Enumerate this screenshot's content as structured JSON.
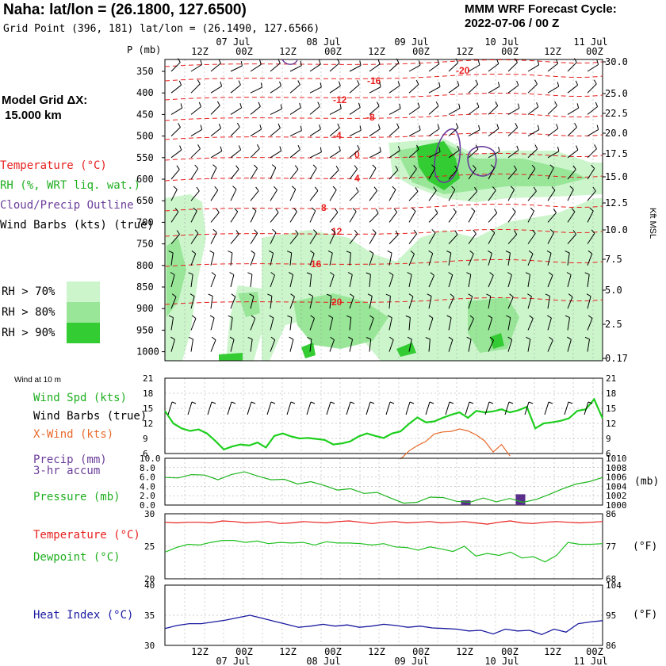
{
  "header": {
    "title": "Naha:  lat/lon = (26.1800, 127.6500)",
    "grid_point": "Grid Point (396, 181) lat/lon = (26.1490, 127.6566)",
    "forecast_label": "MMM WRF Forecast Cycle:",
    "forecast_cycle": "2022-07-06 / 00  Z",
    "model_grid_label": "Model Grid ΔX:",
    "model_grid_value": "15.000 km"
  },
  "time_axis": {
    "hours": [
      "12Z",
      "00Z",
      "12Z",
      "00Z",
      "12Z",
      "00Z",
      "12Z",
      "00Z",
      "12Z",
      "00Z"
    ],
    "dates": [
      "07 Jul",
      "08 Jul",
      "09 Jul",
      "10 Jul",
      "11 Jul"
    ]
  },
  "legend": {
    "temperature": "Temperature (°C)",
    "rh": "RH (%, WRT liq. wat.)",
    "cloud": "Cloud/Precip Outline",
    "barbs": "Wind Barbs (kts) (true)",
    "rh70": "RH > 70%",
    "rh80": "RH > 80%",
    "rh90": "RH > 90%",
    "colors": {
      "rh70": "#ccf5cc",
      "rh80": "#99e699",
      "rh90": "#33cc33",
      "temp": "#e8201e",
      "cloud": "#6a3d9a",
      "wind": "#1ecf1e",
      "xwind": "#e86a2a",
      "pres": "#20b420",
      "precip": "#5a2d8a",
      "heat": "#1a1aa0",
      "dew": "#20c020"
    }
  },
  "chart_data": [
    {
      "type": "heatmap",
      "title": "Time-height cross section",
      "ylabel": "P (mb)",
      "right_label": "Kft MSL",
      "p_ticks": [
        "350",
        "400",
        "450",
        "500",
        "550",
        "600",
        "650",
        "700",
        "750",
        "800",
        "850",
        "900",
        "950",
        "1000"
      ],
      "p_label": "P (mb)",
      "kft_ticks": [
        "30.0",
        "25.0",
        "22.5",
        "20.0",
        "17.5",
        "15.0",
        "12.5",
        "10.0",
        "7.5",
        "5.0",
        "2.5",
        "0.17"
      ],
      "temperature_contour_labels": [
        "-20",
        "-16",
        "-12",
        "-8",
        "-4",
        "0",
        "4",
        "8",
        "12",
        "16",
        "20"
      ],
      "temperature_contour_unit": "°C"
    },
    {
      "type": "line",
      "title": "Wind at 10 m",
      "series": [
        {
          "name": "Wind Spd (kts)",
          "values": [
            14.5,
            12,
            11,
            10.5,
            10.8,
            10,
            8.5,
            6.8,
            7.4,
            7.8,
            7.6,
            8.2,
            7.2,
            9.5,
            10,
            9.4,
            9,
            9.1,
            8.9,
            8.7,
            7.8,
            8,
            8.4,
            9.4,
            10,
            9.5,
            9.1,
            10,
            10.4,
            11.9,
            13.2,
            12.2,
            12.4,
            13.1,
            13.7,
            14.2,
            13.1,
            14.5,
            14.2,
            14.4,
            14.8,
            14.2,
            14.6,
            15.3,
            11,
            12,
            12.2,
            12.5,
            13,
            14.5,
            14.8,
            16.8,
            13
          ]
        },
        {
          "name": "X-Wind (kts)",
          "values": [
            null,
            null,
            null,
            null,
            null,
            null,
            null,
            null,
            null,
            null,
            null,
            null,
            null,
            null,
            null,
            null,
            null,
            null,
            null,
            null,
            null,
            null,
            null,
            null,
            null,
            null,
            null,
            null,
            4.9,
            6.5,
            7.6,
            8.4,
            9.9,
            10.3,
            10.4,
            10.9,
            10.5,
            9.7,
            8.5,
            6.3,
            7.8,
            5.5,
            null,
            null,
            null,
            null,
            null,
            null,
            null,
            null,
            null,
            null,
            null
          ]
        }
      ],
      "ylim": [
        6,
        21
      ],
      "yticks": [
        "21",
        "18",
        "15",
        "12",
        "9",
        "6"
      ],
      "labels": {
        "title": "Wind at 10 m",
        "spd": "Wind Spd (kts)",
        "barbs": "Wind Barbs (true)",
        "xwind": "X-Wind (kts)"
      }
    },
    {
      "type": "line",
      "title": "Precip / Pressure",
      "series": [
        {
          "name": "Pressure (mb)",
          "values": [
            1005.9,
            1005.8,
            1006.5,
            1006.4,
            1005.4,
            1006.5,
            1007.1,
            1006.2,
            1005.4,
            1005.5,
            1004.5,
            1005.0,
            1004.2,
            1003.2,
            1003.5,
            1002.5,
            1002.7,
            1001.5,
            1000.4,
            1000.6,
            1001.7,
            1001.6,
            1000.8,
            1000.6,
            1001.5,
            1000.7,
            1001.4,
            1000.6,
            1001.2,
            1002.3,
            1003.5,
            1004.5,
            1005.0,
            1005.9
          ]
        },
        {
          "name": "Precip (mm) 3-hr accum",
          "values": [
            0,
            0,
            0,
            0,
            0,
            0,
            0,
            0,
            0,
            0,
            0,
            0,
            0,
            0,
            0,
            0,
            0,
            0,
            0,
            0,
            0,
            0,
            0,
            0,
            0,
            0,
            0,
            0,
            0,
            0,
            0,
            0,
            0,
            1.0,
            0,
            0,
            0,
            0,
            0,
            2.3,
            0,
            0,
            0,
            0,
            0,
            0,
            0,
            0,
            0
          ]
        }
      ],
      "left_ticks": [
        "10.0",
        "8.0",
        "6.0",
        "4.0",
        "2.0",
        "0.0"
      ],
      "right_ticks": [
        "1010",
        "1008",
        "1006",
        "1004",
        "1002",
        "1000"
      ],
      "labels": {
        "precip": "Precip (mm)",
        "accum": "3-hr accum",
        "pres": "Pressure (mb)",
        "unit": "(mb)"
      }
    },
    {
      "type": "line",
      "title": "Temperature / Dewpoint",
      "series": [
        {
          "name": "Temperature (°C)",
          "values": [
            28.7,
            28.6,
            28.7,
            28.7,
            28.6,
            28.9,
            28.8,
            28.6,
            28.7,
            28.8,
            28.5,
            28.6,
            28.8,
            28.7,
            28.6,
            28.8,
            28.9,
            28.7,
            28.5,
            28.7,
            28.8,
            28.6,
            28.7,
            28.8,
            28.6,
            28.7,
            28.8,
            28.6,
            28.4,
            28.7,
            28.9,
            28.6,
            28.5,
            28.7,
            28.8,
            28.7,
            28.6,
            28.7,
            28.8
          ]
        },
        {
          "name": "Dewpoint (°C)",
          "values": [
            24.1,
            24.8,
            25.3,
            25.2,
            25.6,
            25.9,
            25.9,
            25.6,
            25.8,
            25.4,
            25.6,
            25.5,
            25.6,
            25.2,
            25.7,
            25.5,
            25.5,
            25.4,
            25.2,
            25.4,
            24.9,
            24.8,
            24.4,
            24.9,
            24.6,
            24.2,
            25.0,
            23.5,
            23.9,
            23.6,
            24.1,
            23.2,
            23.4,
            22.6,
            23.6,
            25.6,
            25.3,
            25.3,
            25.4
          ]
        }
      ],
      "left_ticks": [
        "30",
        "25",
        "20"
      ],
      "right_ticks": [
        "86",
        "77",
        "68"
      ],
      "labels": {
        "temp": "Temperature (°C)",
        "dew": "Dewpoint (°C)",
        "unit": "(°F)"
      }
    },
    {
      "type": "line",
      "title": "Heat Index",
      "series": [
        {
          "name": "Heat Index (°C)",
          "values": [
            32.8,
            33.3,
            33.6,
            33.6,
            33.9,
            34.2,
            34.6,
            35.0,
            34.5,
            34.0,
            33.5,
            33.0,
            33.2,
            33.5,
            33.2,
            33.4,
            33.0,
            33.2,
            33.5,
            33.3,
            33.0,
            33.2,
            32.9,
            32.8,
            32.7,
            32.4,
            32.5,
            31.9,
            32.7,
            32.4,
            32.5,
            31.8,
            32.7,
            32.2,
            33.6,
            33.9,
            34.1
          ]
        }
      ],
      "left_ticks": [
        "40",
        "35",
        "30"
      ],
      "right_ticks": [
        "104",
        "95",
        "86"
      ],
      "labels": {
        "heat": "Heat Index (°C)",
        "unit": "(°F)"
      }
    }
  ]
}
